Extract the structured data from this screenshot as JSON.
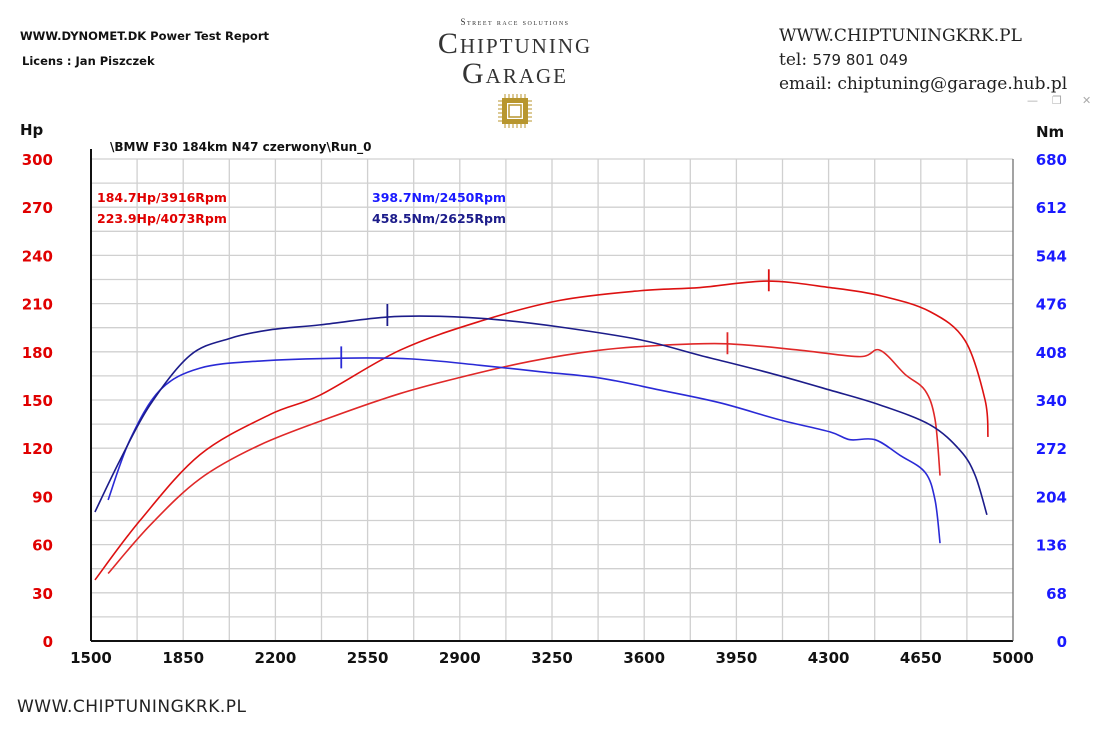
{
  "header": {
    "report_title": "WWW.DYNOMET.DK  Power Test Report",
    "license": "Licens :  Jan Piszczek"
  },
  "logo": {
    "tagline": "Street race solutions",
    "line1": "Chiptuning",
    "line2": "Garage",
    "gold": "#b8962e"
  },
  "contact": {
    "website": "WWW.CHIPTUNINGKRK.PL",
    "tel_label": "tel: ",
    "tel_number": "579 801 049",
    "email": "email: chiptuning@garage.hub.pl"
  },
  "window_controls": {
    "minimize": "—",
    "restore": "❐",
    "close": "✕"
  },
  "footer": {
    "website": "WWW.CHIPTUNINGKRK.PL"
  },
  "chart_data": {
    "type": "line",
    "title": "\\BMW F30 184km N47 czerwony\\Run_0",
    "xlabel": "",
    "ylabel_left": "Hp",
    "ylabel_right": "Nm",
    "xlim": [
      1500,
      5000
    ],
    "ylim_left": [
      0,
      300
    ],
    "ylim_right": [
      0,
      680
    ],
    "x_ticks": [
      1500,
      1850,
      2200,
      2550,
      2900,
      3250,
      3600,
      3950,
      4300,
      4650,
      5000
    ],
    "y_ticks_left": [
      0,
      30,
      60,
      90,
      120,
      150,
      180,
      210,
      240,
      270,
      300
    ],
    "y_ticks_right": [
      0,
      68,
      136,
      204,
      272,
      340,
      408,
      476,
      544,
      612,
      680
    ],
    "grid": true,
    "colors": {
      "left_axis": "#e00000",
      "right_axis": "#1a1aff",
      "power_stock": "#e02828",
      "power_tuned": "#dd1111",
      "torque_stock": "#2a2ad6",
      "torque_tuned": "#1c1c8a"
    },
    "annotations": [
      {
        "text": "184.7Hp/3916Rpm",
        "color": "#e00000"
      },
      {
        "text": "223.9Hp/4073Rpm",
        "color": "#e00000"
      },
      {
        "text": "398.7Nm/2450Rpm",
        "color": "#1a1aff"
      },
      {
        "text": "458.5Nm/2625Rpm",
        "color": "#1c1c8a"
      }
    ],
    "series": [
      {
        "name": "power_stock",
        "axis": "left",
        "peak": [
          3916,
          184.7
        ],
        "x": [
          1565,
          1724,
          1914,
          2141,
          2407,
          2673,
          2900,
          3166,
          3432,
          3660,
          3914,
          4191,
          4419,
          4495,
          4590,
          4666,
          4704,
          4723
        ],
        "y": [
          42,
          72,
          101,
          122,
          139,
          154,
          164,
          174,
          181,
          184,
          185,
          181,
          177,
          181,
          166,
          156,
          138,
          103
        ]
      },
      {
        "name": "power_tuned",
        "axis": "left",
        "peak": [
          4073,
          223.9
        ],
        "x": [
          1515,
          1686,
          1914,
          2180,
          2369,
          2673,
          2977,
          3280,
          3584,
          3812,
          4066,
          4305,
          4495,
          4685,
          4818,
          4894,
          4905
        ],
        "y": [
          38,
          75,
          116,
          141,
          153,
          181,
          199,
          212,
          218,
          220,
          224,
          220,
          215,
          205,
          187,
          150,
          127
        ]
      },
      {
        "name": "torque_stock",
        "axis": "right",
        "peak": [
          2450,
          398.7
        ],
        "x": [
          1565,
          1648,
          1762,
          1914,
          2141,
          2449,
          2711,
          2977,
          3204,
          3432,
          3660,
          3888,
          4115,
          4305,
          4381,
          4476,
          4571,
          4666,
          4704,
          4723
        ],
        "y": [
          199,
          284,
          354,
          385,
          395,
          399,
          398,
          389,
          380,
          371,
          354,
          336,
          312,
          295,
          284,
          284,
          262,
          238,
          199,
          138
        ]
      },
      {
        "name": "torque_tuned",
        "axis": "right",
        "peak": [
          2625,
          458.5
        ],
        "x": [
          1515,
          1610,
          1724,
          1876,
          2028,
          2180,
          2369,
          2624,
          2825,
          3052,
          3280,
          3584,
          3812,
          4077,
          4305,
          4495,
          4685,
          4799,
          4856,
          4901
        ],
        "y": [
          182,
          255,
          333,
          403,
          427,
          439,
          446,
          457,
          458,
          453,
          443,
          425,
          403,
          378,
          354,
          333,
          305,
          269,
          234,
          178
        ]
      }
    ]
  }
}
